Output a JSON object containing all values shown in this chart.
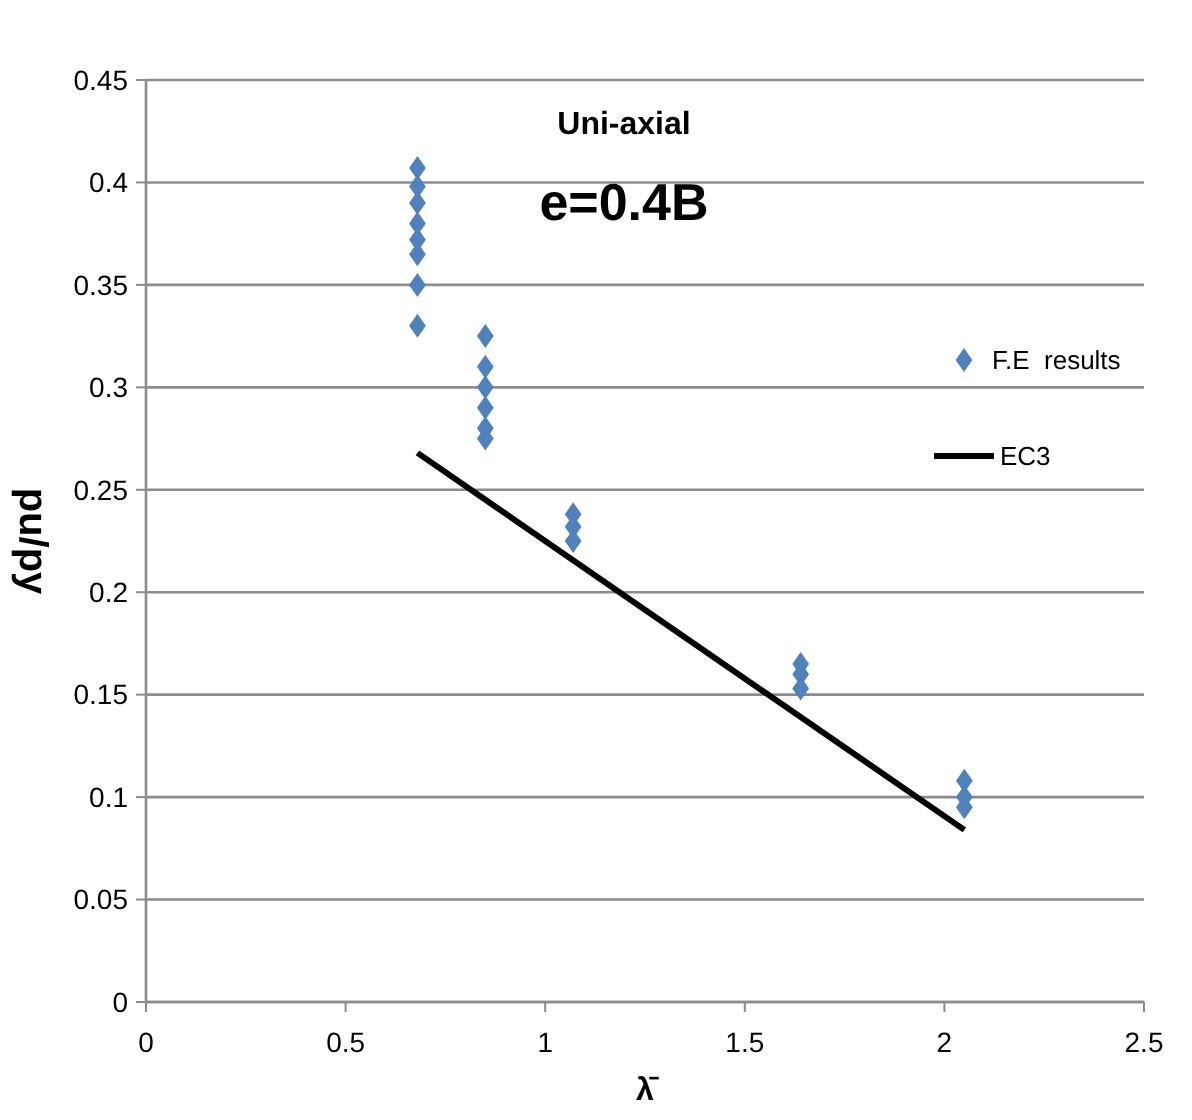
{
  "chart_data": {
    "type": "scatter",
    "title": "Uni-axial",
    "subtitle": "e=0.4B",
    "xlabel": "λ̄",
    "ylabel": "pu/py",
    "xlim": [
      0,
      2.5
    ],
    "xticks": [
      0,
      0.5,
      1,
      1.5,
      2,
      2.5
    ],
    "ylim": [
      0,
      0.45
    ],
    "yticks": [
      0,
      0.05,
      0.1,
      0.15,
      0.2,
      0.25,
      0.3,
      0.35,
      0.4,
      0.45
    ],
    "grid": "y",
    "legend": "right",
    "series": [
      {
        "name": "F.E  results",
        "color": "#4f81bd",
        "marker": "diamond",
        "x": [
          0.68,
          0.68,
          0.68,
          0.68,
          0.68,
          0.68,
          0.68,
          0.68,
          0.85,
          0.85,
          0.85,
          0.85,
          0.85,
          0.85,
          1.07,
          1.07,
          1.07,
          1.64,
          1.64,
          1.64,
          2.05,
          2.05,
          2.05
        ],
        "values": [
          0.407,
          0.398,
          0.39,
          0.38,
          0.372,
          0.365,
          0.35,
          0.33,
          0.325,
          0.31,
          0.3,
          0.29,
          0.28,
          0.275,
          0.238,
          0.232,
          0.225,
          0.165,
          0.16,
          0.153,
          0.108,
          0.1,
          0.095
        ]
      },
      {
        "name": "EC3",
        "type": "line",
        "color": "#000000",
        "marker": "none",
        "line_style": "solid",
        "x": [
          0.68,
          2.05
        ],
        "values": [
          0.268,
          0.084
        ]
      }
    ]
  }
}
